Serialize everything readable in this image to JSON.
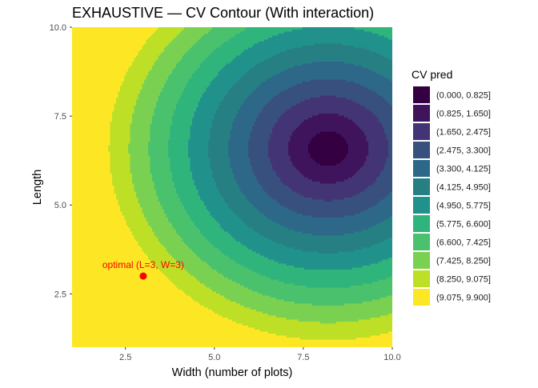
{
  "chart_data": {
    "type": "contour",
    "title": "EXHAUSTIVE — CV Contour (With interaction)",
    "xlabel": "Width (number of plots)",
    "ylabel": "Length",
    "xlim": [
      1,
      10
    ],
    "ylim": [
      1,
      10
    ],
    "x_ticks": [
      2.5,
      5.0,
      7.5,
      10.0
    ],
    "x_tick_labels": [
      "2.5",
      "5.0",
      "7.5",
      "10.0"
    ],
    "y_ticks": [
      2.5,
      5.0,
      7.5,
      10.0
    ],
    "y_tick_labels": [
      "2.5",
      "5.0",
      "7.5",
      "10.0"
    ],
    "grid": false,
    "legend_position": "right",
    "legend": {
      "title": "CV pred",
      "bins": [
        {
          "label": "(0.000, 0.825]",
          "color": "#340042"
        },
        {
          "label": "(0.825, 1.650]",
          "color": "#3f145c"
        },
        {
          "label": "(1.650, 2.475]",
          "color": "#433575"
        },
        {
          "label": "(2.475, 3.300]",
          "color": "#37507e"
        },
        {
          "label": "(3.300, 4.125]",
          "color": "#2d6889"
        },
        {
          "label": "(4.125, 4.950]",
          "color": "#268083"
        },
        {
          "label": "(4.950, 5.775]",
          "color": "#21918c"
        },
        {
          "label": "(5.775, 6.600]",
          "color": "#2fb47c"
        },
        {
          "label": "(6.600, 7.425]",
          "color": "#4ac16d"
        },
        {
          "label": "(7.425, 8.250]",
          "color": "#7ad151"
        },
        {
          "label": "(8.250, 9.075]",
          "color": "#bddf26"
        },
        {
          "label": "(9.075, 9.900]",
          "color": "#fde725"
        }
      ]
    },
    "surface": {
      "form": "elliptical bowl",
      "minimum_at": {
        "x": 8.2,
        "y": 6.6
      },
      "minimum_value": 0.0,
      "maximum_value": 9.9
    },
    "annotations": [
      {
        "text": "optimal (L=3, W=3)",
        "x": 3,
        "y": 3,
        "color": "#ff0000"
      }
    ]
  }
}
